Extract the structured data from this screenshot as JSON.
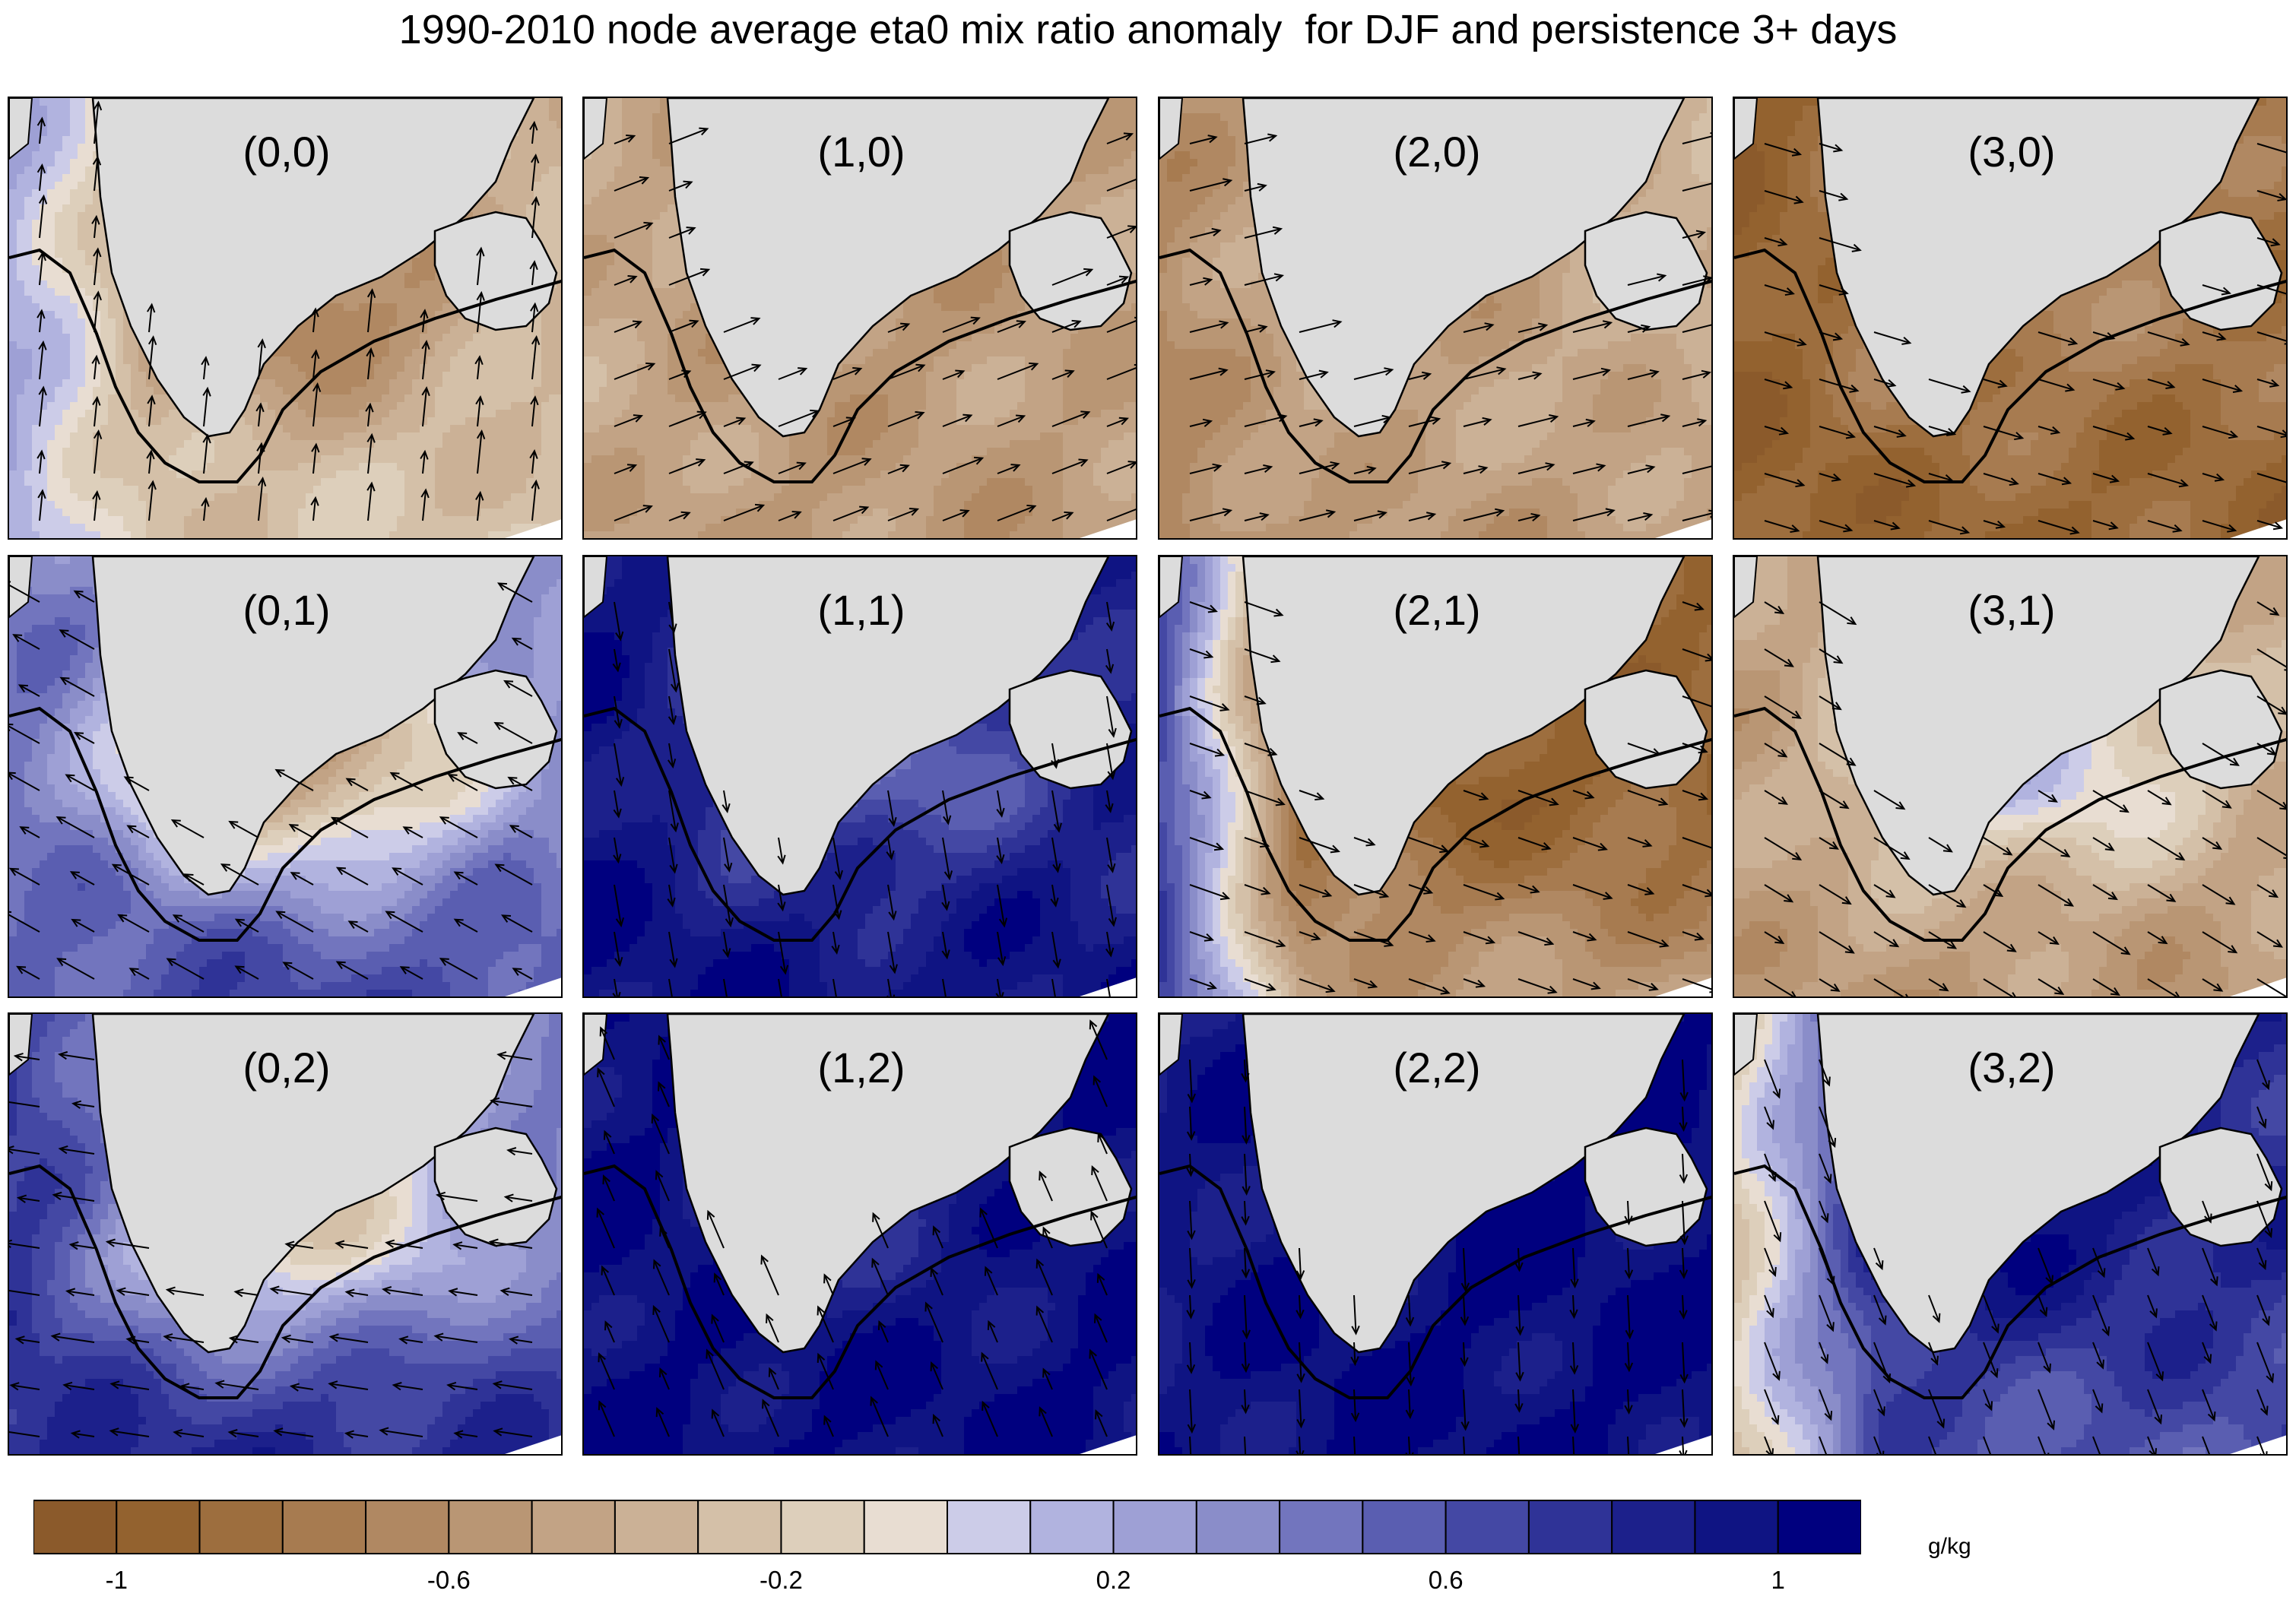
{
  "title": "1990-2010 node average eta0 mix ratio anomaly  for DJF and persistence 3+ days",
  "panels": [
    {
      "label": "(0,0)",
      "base": -0.3,
      "shelf": -0.8,
      "south": -0.2,
      "west": 0.3,
      "wind": [
        0.1,
        1.0
      ]
    },
    {
      "label": "(1,0)",
      "base": -0.45,
      "shelf": -0.55,
      "south": -0.55,
      "west": -0.4,
      "wind": [
        0.9,
        0.35
      ]
    },
    {
      "label": "(2,0)",
      "base": -0.35,
      "shelf": -0.5,
      "south": -0.6,
      "west": -0.7,
      "wind": [
        1.0,
        0.25
      ]
    },
    {
      "label": "(3,0)",
      "base": -0.8,
      "shelf": -0.6,
      "south": -0.95,
      "west": -1.0,
      "wind": [
        1.0,
        -0.3
      ]
    },
    {
      "label": "(0,1)",
      "base": 0.3,
      "shelf": -0.7,
      "south": 0.8,
      "west": 0.5,
      "wind": [
        -0.9,
        0.5
      ]
    },
    {
      "label": "(1,1)",
      "base": 0.85,
      "shelf": 0.4,
      "south": 1.0,
      "west": 1.0,
      "wind": [
        0.1,
        -0.6
      ]
    },
    {
      "label": "(2,1)",
      "base": -0.9,
      "shelf": -0.95,
      "south": -0.3,
      "west": 1.0,
      "wind": [
        1.0,
        -0.35
      ]
    },
    {
      "label": "(3,1)",
      "base": -0.35,
      "shelf": 0.2,
      "south": -0.6,
      "west": -0.5,
      "wind": [
        0.9,
        -0.55
      ]
    },
    {
      "label": "(0,2)",
      "base": 0.4,
      "shelf": -0.3,
      "south": 1.0,
      "west": 0.8,
      "wind": [
        -1.0,
        0.15
      ]
    },
    {
      "label": "(1,2)",
      "base": 1.0,
      "shelf": 0.8,
      "south": 1.0,
      "west": 1.0,
      "wind": [
        -0.3,
        0.7
      ]
    },
    {
      "label": "(2,2)",
      "base": 1.0,
      "shelf": 1.0,
      "south": 1.0,
      "west": 0.9,
      "wind": [
        0.05,
        -1.0
      ]
    },
    {
      "label": "(3,2)",
      "base": 0.8,
      "shelf": 1.0,
      "south": 0.5,
      "west": -0.4,
      "wind": [
        0.35,
        -0.9
      ]
    }
  ],
  "colorbar": {
    "levels": [
      -1.1,
      -1.0,
      -0.9,
      -0.8,
      -0.7,
      -0.6,
      -0.5,
      -0.4,
      -0.3,
      -0.2,
      -0.1,
      0.0,
      0.1,
      0.2,
      0.3,
      0.4,
      0.5,
      0.6,
      0.7,
      0.8,
      0.9,
      1.0,
      1.1
    ],
    "colors": [
      "#8b5a2b",
      "#93622f",
      "#9d6e3e",
      "#a77b50",
      "#b08862",
      "#b99674",
      "#c2a385",
      "#cbb196",
      "#d4c0a8",
      "#ddcfbb",
      "#e8ddd2",
      "#cccce8",
      "#b1b3df",
      "#9ea0d5",
      "#8a8dc9",
      "#7275be",
      "#5a5eb1",
      "#4448a4",
      "#2f3397",
      "#1c208b",
      "#0f1483",
      "#00007f"
    ],
    "tick_labels": [
      "-1",
      "-0.6",
      "-0.2",
      "0.2",
      "0.6",
      "1"
    ],
    "tick_values": [
      -1.0,
      -0.6,
      -0.2,
      0.2,
      0.6,
      1.0
    ],
    "units": "g/kg"
  },
  "land_color": "#dcdcdc"
}
